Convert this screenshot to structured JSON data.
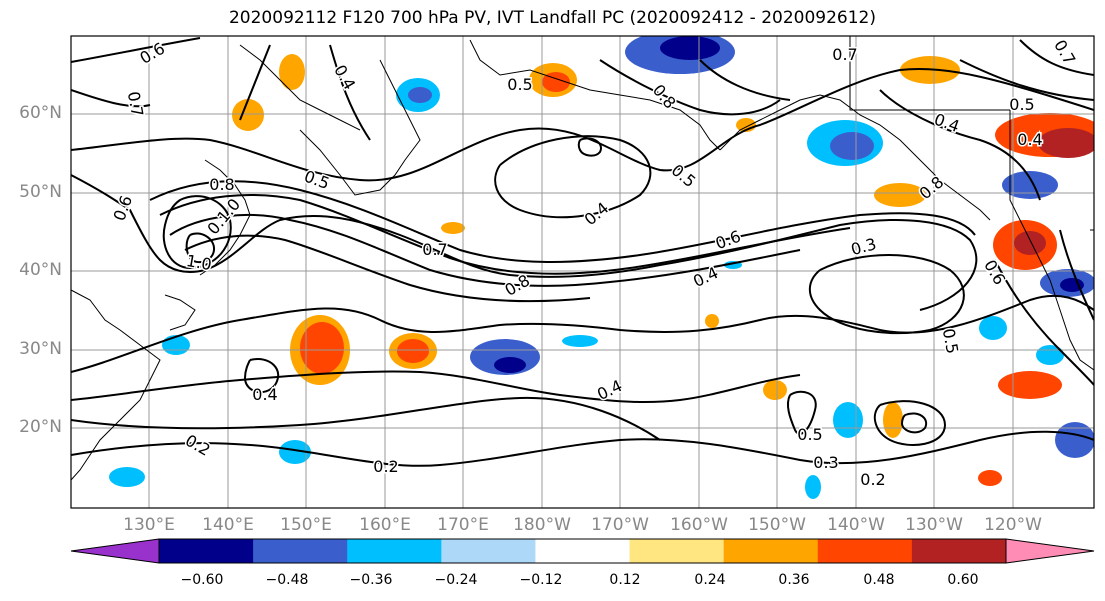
{
  "title": "2020092112 F120 700 hPa PV, IVT Landfall PC (2020092412 - 2020092612)",
  "axes": {
    "lat_labels": [
      "60°N",
      "50°N",
      "40°N",
      "30°N",
      "20°N"
    ],
    "lon_labels": [
      "130°E",
      "140°E",
      "150°E",
      "160°E",
      "170°E",
      "180°W",
      "170°W",
      "160°W",
      "150°W",
      "140°W",
      "130°W",
      "120°W"
    ]
  },
  "colorbar": {
    "tick_labels": [
      "−0.60",
      "−0.48",
      "−0.36",
      "−0.24",
      "−0.12",
      "0.12",
      "0.24",
      "0.36",
      "0.48",
      "0.60"
    ],
    "colors": [
      "#9932cc",
      "#00008b",
      "#3a5fcd",
      "#00bfff",
      "#add8f8",
      "#ffffff",
      "#ffe680",
      "#ffa500",
      "#ff4500",
      "#b22222",
      "#ff8cb4"
    ]
  },
  "contour_labels": [
    "0.6",
    "0.7",
    "0.4",
    "0.1.0",
    "0.8",
    "0.5",
    "0.7",
    "0.6",
    "0.4",
    "0.3",
    "0.4",
    "0.5",
    "0.4",
    "0.5",
    "0.3",
    "0.2",
    "0.2",
    "0.2",
    "0.8",
    "0.8",
    "1.0",
    "0.4",
    "0.7",
    "0.5",
    "0.8",
    "0.6",
    "0.5",
    "0.4",
    "0.7",
    "0.5",
    "0.4",
    "0.6"
  ]
}
